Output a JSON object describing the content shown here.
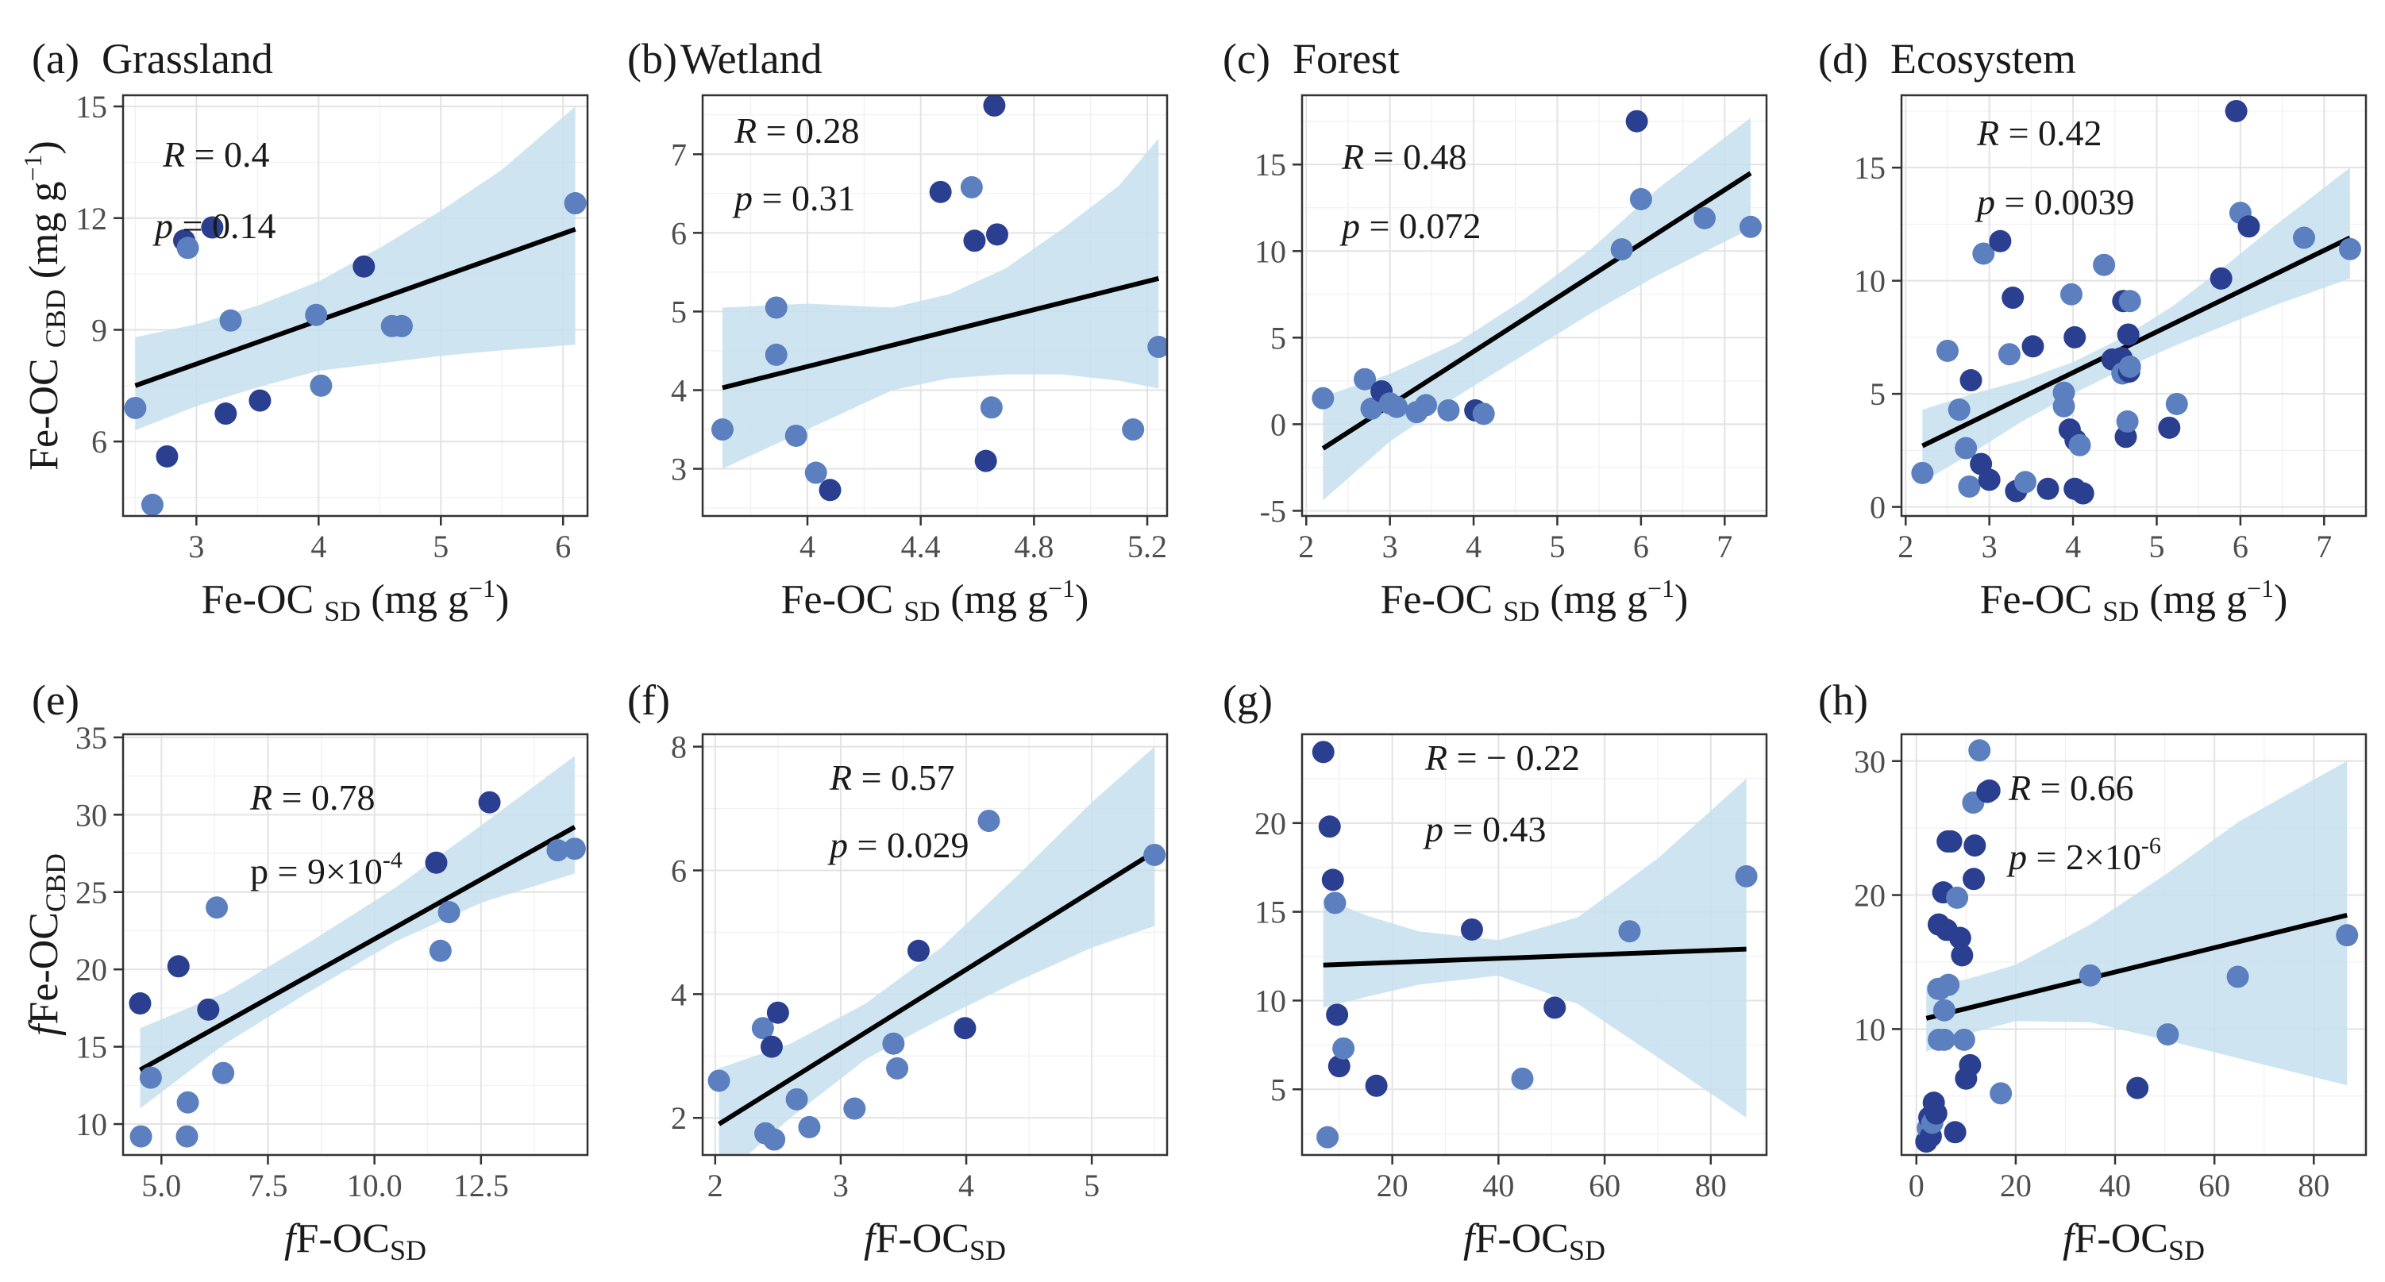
{
  "point_colors": [
    "#2a3f8f",
    "#5b7fbf"
  ],
  "band_color": "#c5e1ef",
  "chart_data": [
    {
      "type": "scatter",
      "letter": "(a)",
      "title": "Grassland",
      "xlabel": "Fe-OC SD (mg g-1)",
      "ylabel": "Fe-OC CBD (mg g-1)",
      "xlim": [
        2.4,
        6.2
      ],
      "ylim": [
        4.0,
        15.3
      ],
      "xticks": [
        3,
        4,
        5,
        6
      ],
      "yticks": [
        6,
        9,
        12,
        15
      ],
      "x": [
        2.5,
        2.64,
        2.76,
        2.9,
        2.93,
        3.13,
        3.24,
        3.28,
        3.52,
        3.98,
        4.02,
        4.37,
        4.6,
        4.68,
        6.1
      ],
      "y": [
        6.9,
        4.3,
        5.6,
        11.4,
        11.2,
        11.75,
        6.75,
        9.25,
        7.1,
        9.4,
        7.5,
        10.7,
        9.1,
        9.1,
        12.4
      ],
      "fit": [
        [
          2.5,
          7.5
        ],
        [
          6.1,
          11.7
        ]
      ],
      "band": [
        [
          2.5,
          6.3,
          8.8
        ],
        [
          3.0,
          6.95,
          9.15
        ],
        [
          3.5,
          7.45,
          9.65
        ],
        [
          4.0,
          7.9,
          10.3
        ],
        [
          4.5,
          8.1,
          11.2
        ],
        [
          5.0,
          8.3,
          12.2
        ],
        [
          5.5,
          8.45,
          13.3
        ],
        [
          6.1,
          8.6,
          15.0
        ]
      ],
      "annotations": {
        "r_label": "R",
        "r_value": "= 0.4",
        "p_label": "p",
        "p_value": "= 0.14"
      }
    },
    {
      "type": "scatter",
      "letter": "(b)",
      "title": "Wetland",
      "xlabel": "Fe-OC SD (mg g-1)",
      "ylabel": "",
      "xlim": [
        3.63,
        5.27
      ],
      "ylim": [
        2.4,
        7.75
      ],
      "xticks": [
        4.0,
        4.4,
        4.8,
        5.2
      ],
      "yticks": [
        3,
        4,
        5,
        6,
        7
      ],
      "x": [
        3.7,
        3.89,
        3.89,
        3.96,
        4.03,
        4.08,
        4.47,
        4.58,
        4.59,
        4.63,
        4.65,
        4.66,
        4.67,
        5.15,
        5.24
      ],
      "y": [
        3.5,
        5.05,
        4.45,
        3.42,
        2.95,
        2.73,
        6.52,
        6.58,
        5.9,
        3.1,
        3.78,
        7.62,
        5.98,
        3.5,
        4.55
      ],
      "fit": [
        [
          3.7,
          4.03
        ],
        [
          5.24,
          5.42
        ]
      ],
      "band": [
        [
          3.7,
          3.0,
          5.05
        ],
        [
          4.0,
          3.5,
          5.1
        ],
        [
          4.3,
          4.0,
          5.05
        ],
        [
          4.5,
          4.15,
          5.22
        ],
        [
          4.7,
          4.2,
          5.55
        ],
        [
          4.9,
          4.2,
          6.05
        ],
        [
          5.1,
          4.12,
          6.6
        ],
        [
          5.24,
          4.02,
          7.2
        ]
      ],
      "annotations": {
        "r_label": "R",
        "r_value": "= 0.28",
        "p_label": "p",
        "p_value": "= 0.31"
      }
    },
    {
      "type": "scatter",
      "letter": "(c)",
      "title": "Forest",
      "xlabel": "Fe-OC SD (mg g-1)",
      "ylabel": "",
      "xlim": [
        1.95,
        7.5
      ],
      "ylim": [
        -5.3,
        19.0
      ],
      "xticks": [
        2,
        3,
        4,
        5,
        6,
        7
      ],
      "yticks": [
        -5,
        0,
        5,
        10,
        15
      ],
      "x": [
        2.2,
        2.7,
        2.78,
        2.9,
        3.0,
        3.08,
        3.32,
        3.43,
        3.7,
        4.02,
        4.12,
        5.77,
        5.95,
        6.0,
        6.76,
        7.31
      ],
      "y": [
        1.5,
        2.6,
        0.9,
        1.9,
        1.2,
        1.0,
        0.7,
        1.1,
        0.8,
        0.8,
        0.6,
        10.1,
        17.5,
        13.0,
        11.9,
        11.4
      ],
      "fit": [
        [
          2.2,
          -1.4
        ],
        [
          7.31,
          14.5
        ]
      ],
      "band": [
        [
          2.2,
          -4.4,
          1.6
        ],
        [
          3.0,
          -1.0,
          2.9
        ],
        [
          3.8,
          1.6,
          4.7
        ],
        [
          4.6,
          4.0,
          7.2
        ],
        [
          5.4,
          6.4,
          10.1
        ],
        [
          6.2,
          8.6,
          13.6
        ],
        [
          7.31,
          11.3,
          17.7
        ]
      ],
      "annotations": {
        "r_label": "R",
        "r_value": "= 0.48",
        "p_label": "p",
        "p_value": "= 0.072"
      }
    },
    {
      "type": "scatter",
      "letter": "(d)",
      "title": "Ecosystem",
      "xlabel": "Fe-OC SD (mg g-1)",
      "ylabel": "",
      "xlim": [
        1.95,
        7.5
      ],
      "ylim": [
        -0.4,
        18.2
      ],
      "xticks": [
        2,
        3,
        4,
        5,
        6,
        7
      ],
      "yticks": [
        0,
        5,
        10,
        15
      ],
      "x": [
        2.2,
        2.5,
        2.64,
        2.72,
        2.76,
        2.78,
        2.9,
        2.93,
        3.0,
        3.13,
        3.24,
        3.28,
        3.32,
        3.43,
        3.52,
        3.7,
        3.89,
        3.89,
        3.96,
        3.98,
        4.02,
        4.03,
        4.08,
        4.02,
        4.12,
        4.37,
        4.47,
        4.58,
        4.59,
        4.6,
        4.63,
        4.65,
        4.66,
        4.67,
        4.68,
        4.68,
        5.15,
        5.24,
        5.77,
        5.95,
        6.0,
        6.1,
        6.76,
        7.31
      ],
      "y": [
        1.5,
        6.9,
        4.3,
        2.6,
        0.9,
        5.6,
        1.9,
        11.2,
        1.2,
        11.75,
        6.75,
        9.25,
        0.7,
        1.1,
        7.1,
        0.8,
        5.05,
        4.45,
        3.42,
        9.4,
        7.5,
        2.95,
        2.73,
        0.8,
        0.6,
        10.7,
        6.52,
        6.58,
        5.9,
        9.1,
        3.1,
        3.78,
        7.62,
        5.98,
        9.1,
        6.2,
        3.5,
        4.55,
        10.1,
        17.5,
        13.0,
        12.4,
        11.9,
        11.4
      ],
      "fit": [
        [
          2.2,
          2.7
        ],
        [
          7.31,
          11.9
        ]
      ],
      "band": [
        [
          2.2,
          1.1,
          4.3
        ],
        [
          2.8,
          2.4,
          5.0
        ],
        [
          3.4,
          3.8,
          5.6
        ],
        [
          4.0,
          5.0,
          6.4
        ],
        [
          4.6,
          6.1,
          7.5
        ],
        [
          5.2,
          7.1,
          8.9
        ],
        [
          5.8,
          8.0,
          10.6
        ],
        [
          6.4,
          8.9,
          12.4
        ],
        [
          7.31,
          10.1,
          15.0
        ]
      ],
      "annotations": {
        "r_label": "R",
        "r_value": "= 0.42",
        "p_label": "p",
        "p_value": "= 0.0039"
      }
    },
    {
      "type": "scatter",
      "letter": "(e)",
      "title": "",
      "xlabel": "fF-OCSD",
      "ylabel": "fFe-OCCBD",
      "xlim": [
        4.1,
        15.0
      ],
      "ylim": [
        8.0,
        35.2
      ],
      "xticks": [
        5.0,
        7.5,
        10.0,
        12.5
      ],
      "xtick_labels": [
        "5.0",
        "7.5",
        "10.0",
        "12.5"
      ],
      "yticks": [
        10,
        15,
        20,
        25,
        30,
        35
      ],
      "x": [
        4.5,
        4.52,
        4.75,
        5.4,
        5.6,
        5.62,
        6.1,
        6.3,
        6.45,
        11.45,
        11.55,
        11.75,
        12.7,
        14.3,
        14.7
      ],
      "y": [
        17.8,
        9.2,
        13.0,
        20.2,
        9.2,
        11.4,
        17.4,
        24.0,
        13.3,
        26.9,
        21.2,
        23.7,
        30.8,
        27.7,
        27.8
      ],
      "fit": [
        [
          4.5,
          13.5
        ],
        [
          14.7,
          29.2
        ]
      ],
      "band": [
        [
          4.5,
          11.0,
          16.2
        ],
        [
          6.5,
          15.2,
          18.5
        ],
        [
          8.5,
          18.6,
          21.8
        ],
        [
          10.5,
          21.8,
          25.3
        ],
        [
          12.5,
          24.3,
          29.3
        ],
        [
          14.7,
          26.2,
          33.8
        ]
      ],
      "annotations": {
        "r_label": "R",
        "r_value": "= 0.78",
        "p_label": "p",
        "p_value": "= 9×10-4"
      }
    },
    {
      "type": "scatter",
      "letter": "(f)",
      "title": "",
      "xlabel": "fF-OCSD",
      "ylabel": "",
      "xlim": [
        1.9,
        5.6
      ],
      "ylim": [
        1.4,
        8.2
      ],
      "xticks": [
        2,
        3,
        4,
        5
      ],
      "yticks": [
        2,
        4,
        6,
        8
      ],
      "x": [
        2.03,
        2.38,
        2.4,
        2.45,
        2.47,
        2.5,
        2.65,
        2.75,
        3.11,
        3.42,
        3.45,
        3.62,
        3.99,
        4.18,
        5.5
      ],
      "y": [
        2.6,
        3.45,
        1.75,
        3.15,
        1.65,
        3.7,
        2.3,
        1.85,
        2.15,
        3.2,
        2.8,
        4.7,
        3.45,
        6.8,
        6.25
      ],
      "fit": [
        [
          2.03,
          1.9
        ],
        [
          5.5,
          6.3
        ]
      ],
      "band": [
        [
          2.03,
          1.0,
          2.8
        ],
        [
          2.6,
          2.0,
          3.2
        ],
        [
          3.2,
          2.95,
          3.85
        ],
        [
          3.8,
          3.6,
          4.75
        ],
        [
          4.4,
          4.2,
          5.9
        ],
        [
          5.0,
          4.75,
          7.1
        ],
        [
          5.5,
          5.1,
          8.0
        ]
      ],
      "annotations": {
        "r_label": "R",
        "r_value": "= 0.57",
        "p_label": "p",
        "p_value": "= 0.029"
      }
    },
    {
      "type": "scatter",
      "letter": "(g)",
      "title": "",
      "xlabel": "fF-OCSD",
      "ylabel": "",
      "xlim": [
        3.0,
        90.5
      ],
      "ylim": [
        1.3,
        25.0
      ],
      "xticks": [
        20,
        40,
        60,
        80
      ],
      "yticks": [
        5,
        10,
        15,
        20
      ],
      "x": [
        7.0,
        7.8,
        8.2,
        8.8,
        9.2,
        9.6,
        10.0,
        10.8,
        17.0,
        35.0,
        44.5,
        50.6,
        64.7,
        86.7
      ],
      "y": [
        24.0,
        2.3,
        19.8,
        16.8,
        15.5,
        9.2,
        6.3,
        7.3,
        5.2,
        14.0,
        5.6,
        9.6,
        13.9,
        17.0
      ],
      "fit": [
        [
          7.0,
          12.0
        ],
        [
          86.7,
          12.9
        ]
      ],
      "band": [
        [
          7.0,
          9.6,
          15.8
        ],
        [
          15.0,
          10.2,
          14.8
        ],
        [
          25.0,
          10.9,
          13.9
        ],
        [
          40.0,
          11.4,
          13.4
        ],
        [
          55.0,
          9.8,
          14.7
        ],
        [
          70.0,
          6.8,
          18.0
        ],
        [
          86.7,
          3.4,
          22.5
        ]
      ],
      "annotations": {
        "r_label": "R",
        "r_value": "=   − 0.22",
        "p_label": "p",
        "p_value": "= 0.43"
      }
    },
    {
      "type": "scatter",
      "letter": "(h)",
      "title": "",
      "xlabel": "fF-OCSD",
      "ylabel": "",
      "xlim": [
        -3.0,
        90.5
      ],
      "ylim": [
        0.6,
        32.0
      ],
      "xticks": [
        0,
        20,
        40,
        60,
        80
      ],
      "yticks": [
        10,
        20,
        30
      ],
      "x": [
        2.0,
        2.3,
        2.6,
        2.9,
        3.2,
        3.5,
        4.0,
        4.4,
        4.5,
        4.52,
        4.75,
        5.4,
        5.6,
        5.62,
        6.1,
        6.3,
        6.45,
        7.0,
        7.8,
        8.2,
        8.8,
        9.2,
        9.6,
        10.0,
        10.8,
        11.45,
        11.55,
        11.75,
        12.7,
        14.3,
        14.7,
        17.0,
        35.0,
        44.5,
        50.6,
        64.7,
        86.7
      ],
      "y": [
        1.6,
        2.6,
        3.4,
        2.0,
        3.0,
        4.5,
        3.7,
        13.0,
        17.8,
        9.2,
        13.0,
        20.2,
        9.2,
        11.4,
        17.4,
        24.0,
        13.3,
        24.0,
        2.3,
        19.8,
        16.8,
        15.5,
        9.2,
        6.3,
        7.3,
        26.9,
        21.2,
        23.7,
        30.8,
        27.7,
        27.8,
        5.2,
        14.0,
        5.6,
        9.6,
        13.9,
        17.0
      ],
      "fit": [
        [
          2.0,
          10.8
        ],
        [
          86.7,
          18.5
        ]
      ],
      "band": [
        [
          2.0,
          8.3,
          13.3
        ],
        [
          10.0,
          9.6,
          13.7
        ],
        [
          20.0,
          10.6,
          14.8
        ],
        [
          35.0,
          10.5,
          17.8
        ],
        [
          50.0,
          9.2,
          21.5
        ],
        [
          65.0,
          7.8,
          25.5
        ],
        [
          86.7,
          5.8,
          30.0
        ]
      ],
      "annotations": {
        "r_label": "R",
        "r_value": "= 0.66",
        "p_label": "p",
        "p_value": "= 2×10-6"
      }
    }
  ]
}
